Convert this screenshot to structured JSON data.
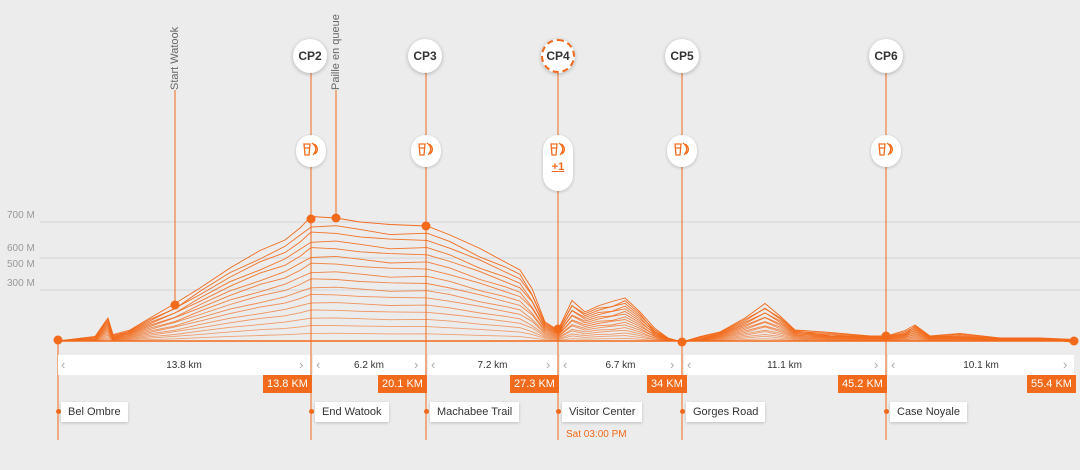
{
  "colors": {
    "accent": "#f26a1b",
    "grid": "#d4d4d4",
    "background": "#ececec"
  },
  "y_axis_labels": [
    "700 M",
    "600 M",
    "500 M",
    "300 M"
  ],
  "markers": [
    {
      "label": "Start Watook"
    },
    {
      "label": "Paille en queue"
    }
  ],
  "checkpoints": [
    {
      "label": "CP2",
      "active": false
    },
    {
      "label": "CP3",
      "active": false
    },
    {
      "label": "CP4",
      "active": true
    },
    {
      "label": "CP5",
      "active": false
    },
    {
      "label": "CP6",
      "active": false
    }
  ],
  "aid_station": {
    "icon": "drink-food-icon",
    "more_label": "+1"
  },
  "segments": [
    {
      "distance": "13.8 km",
      "end_km": "13.8 KM"
    },
    {
      "distance": "6.2 km",
      "end_km": "20.1 KM"
    },
    {
      "distance": "7.2 km",
      "end_km": "27.3 KM"
    },
    {
      "distance": "6.7 km",
      "end_km": "34 KM"
    },
    {
      "distance": "11.1 km",
      "end_km": "45.2 KM"
    },
    {
      "distance": "10.1 km",
      "end_km": "55.4 KM"
    }
  ],
  "places": [
    "Bel Ombre",
    "End Watook",
    "Machabee Trail",
    "Visitor Center",
    "Gorges Road",
    "Case Noyale"
  ],
  "cutoff_time": "Sat 03:00 PM"
}
